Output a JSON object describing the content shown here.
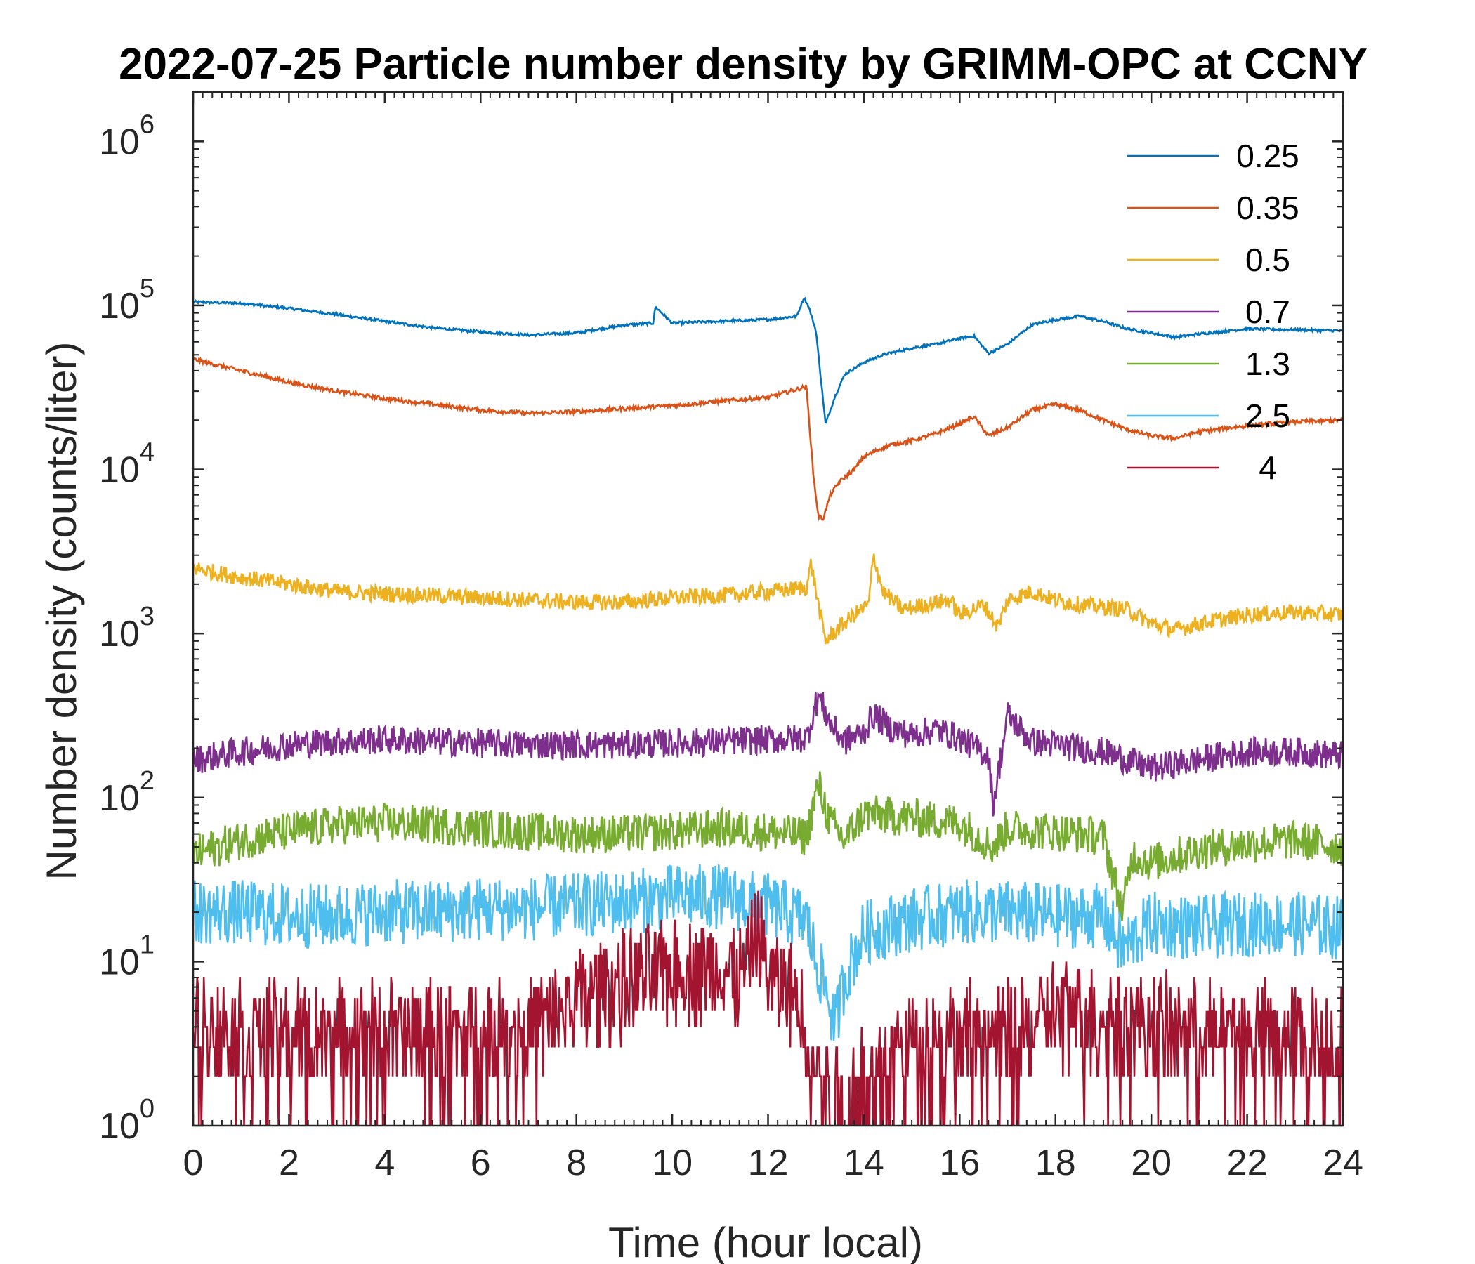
{
  "chart_data": {
    "type": "line",
    "title": "2022-07-25 Particle number density by GRIMM-OPC at CCNY",
    "xlabel": "Time (hour local)",
    "ylabel": "Number density (counts/liter)",
    "xlim": [
      0,
      24
    ],
    "ylim": [
      1,
      2000000
    ],
    "yscale": "log",
    "xticks": [
      0,
      2,
      4,
      6,
      8,
      10,
      12,
      14,
      16,
      18,
      20,
      22,
      24
    ],
    "xtick_labels": [
      "0",
      "2",
      "4",
      "6",
      "8",
      "10",
      "12",
      "14",
      "16",
      "18",
      "20",
      "22",
      "24"
    ],
    "yticks": [
      {
        "value": 1,
        "base": "10",
        "exp": "0"
      },
      {
        "value": 10,
        "base": "10",
        "exp": "1"
      },
      {
        "value": 100,
        "base": "10",
        "exp": "2"
      },
      {
        "value": 1000,
        "base": "10",
        "exp": "3"
      },
      {
        "value": 10000,
        "base": "10",
        "exp": "4"
      },
      {
        "value": 100000,
        "base": "10",
        "exp": "5"
      },
      {
        "value": 1000000,
        "base": "10",
        "exp": "6"
      }
    ],
    "legend_position": "top-right",
    "series": [
      {
        "name": "0.25",
        "color": "#0072BD",
        "x": [
          0,
          1,
          2,
          3,
          4,
          5,
          6,
          7,
          8,
          8.9,
          9,
          9.6,
          9.65,
          10,
          11,
          12,
          12.6,
          12.75,
          12.85,
          13.0,
          13.2,
          13.4,
          13.6,
          14,
          14.4,
          15,
          15.5,
          16,
          16.3,
          16.6,
          17,
          17.5,
          18,
          18.5,
          19,
          19.5,
          20,
          20.5,
          21,
          22,
          23,
          24
        ],
        "values": [
          105000,
          103000,
          96000,
          88000,
          80000,
          73000,
          69000,
          66000,
          68000,
          75000,
          76000,
          78000,
          98000,
          78000,
          80000,
          82000,
          86000,
          112000,
          98000,
          70000,
          19000,
          28000,
          38000,
          45000,
          50000,
          55000,
          58000,
          63000,
          65000,
          51000,
          58000,
          76000,
          82000,
          86000,
          80000,
          72000,
          68000,
          64000,
          67000,
          72000,
          71000,
          70000
        ]
      },
      {
        "name": "0.35",
        "color": "#D95319",
        "x": [
          0,
          1,
          2,
          3,
          4,
          5,
          6,
          7,
          8,
          9,
          10,
          11,
          12,
          12.8,
          12.95,
          13.05,
          13.15,
          13.3,
          13.5,
          13.8,
          14,
          14.5,
          15,
          15.5,
          16,
          16.3,
          16.6,
          17,
          17.5,
          18,
          18.5,
          19,
          19.5,
          20,
          20.5,
          21,
          22,
          23,
          24
        ],
        "values": [
          47000,
          40000,
          34000,
          30000,
          27000,
          25000,
          23000,
          22000,
          22500,
          23500,
          24500,
          26000,
          27500,
          32000,
          9000,
          5200,
          5000,
          7000,
          8500,
          10000,
          12000,
          14000,
          15000,
          16500,
          19000,
          21000,
          16000,
          18000,
          23000,
          25000,
          23000,
          20000,
          17500,
          16000,
          15500,
          17000,
          18500,
          19500,
          20000
        ]
      },
      {
        "name": "0.5",
        "color": "#EDB120",
        "x": [
          0,
          1,
          2,
          3,
          4,
          5,
          6,
          7,
          8,
          9,
          10,
          11,
          12,
          12.8,
          12.9,
          13.05,
          13.2,
          13.5,
          13.8,
          14.1,
          14.2,
          14.4,
          14.8,
          15.3,
          15.8,
          16,
          16.5,
          16.8,
          17,
          17.5,
          18,
          18.5,
          19,
          19.5,
          20,
          20.5,
          21,
          22,
          23,
          24
        ],
        "values": [
          2500,
          2200,
          2000,
          1800,
          1750,
          1700,
          1650,
          1600,
          1550,
          1550,
          1650,
          1700,
          1800,
          1900,
          2700,
          1500,
          900,
          1100,
          1300,
          1500,
          3000,
          1800,
          1400,
          1500,
          1600,
          1300,
          1500,
          1100,
          1600,
          1800,
          1600,
          1500,
          1450,
          1400,
          1150,
          1050,
          1150,
          1300,
          1350,
          1300
        ]
      },
      {
        "name": "0.7",
        "color": "#7E2F8E",
        "x": [
          0,
          1,
          2,
          3,
          4,
          5,
          6,
          7,
          8,
          9,
          10,
          11,
          12,
          12.8,
          13.05,
          13.3,
          13.6,
          14,
          14.2,
          14.6,
          15,
          15.5,
          16,
          16.6,
          16.7,
          17,
          17.5,
          18,
          19,
          20,
          21,
          22,
          23,
          24
        ],
        "values": [
          170,
          190,
          210,
          220,
          225,
          220,
          215,
          210,
          210,
          210,
          215,
          220,
          225,
          230,
          420,
          280,
          220,
          250,
          320,
          260,
          240,
          260,
          230,
          180,
          90,
          320,
          220,
          210,
          190,
          150,
          170,
          190,
          190,
          180
        ]
      },
      {
        "name": "1.3",
        "color": "#77AC30",
        "x": [
          0,
          1,
          2,
          3,
          4,
          5,
          6,
          7,
          8,
          9,
          10,
          11,
          12,
          12.8,
          13.05,
          13.3,
          13.6,
          14,
          15,
          16,
          16.7,
          17,
          18,
          19,
          19.4,
          19.6,
          20,
          21,
          22,
          23,
          24
        ],
        "values": [
          45,
          55,
          62,
          68,
          70,
          68,
          65,
          62,
          60,
          60,
          62,
          65,
          62,
          58,
          120,
          70,
          55,
          80,
          75,
          70,
          50,
          65,
          62,
          58,
          20,
          45,
          40,
          48,
          52,
          55,
          50
        ]
      },
      {
        "name": "2.5",
        "color": "#4DBEEE",
        "x": [
          0,
          1,
          2,
          3,
          4,
          5,
          6,
          7,
          8,
          9,
          10,
          11,
          12,
          12.8,
          13.0,
          13.2,
          13.4,
          13.6,
          14,
          15,
          16,
          17,
          18,
          19,
          19.4,
          20,
          21,
          22,
          23,
          24
        ],
        "values": [
          20,
          20,
          19,
          19,
          20,
          20,
          21,
          21,
          22,
          23,
          25,
          25,
          22,
          18,
          10,
          7,
          4,
          8,
          15,
          18,
          20,
          20,
          19,
          19,
          12,
          17,
          16,
          17,
          17,
          16
        ]
      },
      {
        "name": "4",
        "color": "#A2142F",
        "x": [
          0,
          1,
          2,
          3,
          4,
          5,
          6,
          7,
          7.5,
          8,
          9,
          10,
          11,
          11.5,
          11.8,
          12,
          12.6,
          13.0,
          13.3,
          13.6,
          14.0,
          14.5,
          15,
          16,
          17,
          17.6,
          18,
          19,
          20,
          21,
          22,
          23,
          24
        ],
        "values": [
          4,
          3.5,
          3.5,
          3.5,
          3.5,
          3.5,
          3.5,
          3.8,
          4.5,
          6,
          7.5,
          9,
          9,
          8,
          16,
          8,
          6,
          2,
          1.3,
          1.2,
          1.6,
          2.5,
          3,
          3.2,
          3.5,
          4,
          5,
          4.5,
          4,
          3.5,
          3.5,
          3.3,
          3
        ]
      }
    ]
  }
}
